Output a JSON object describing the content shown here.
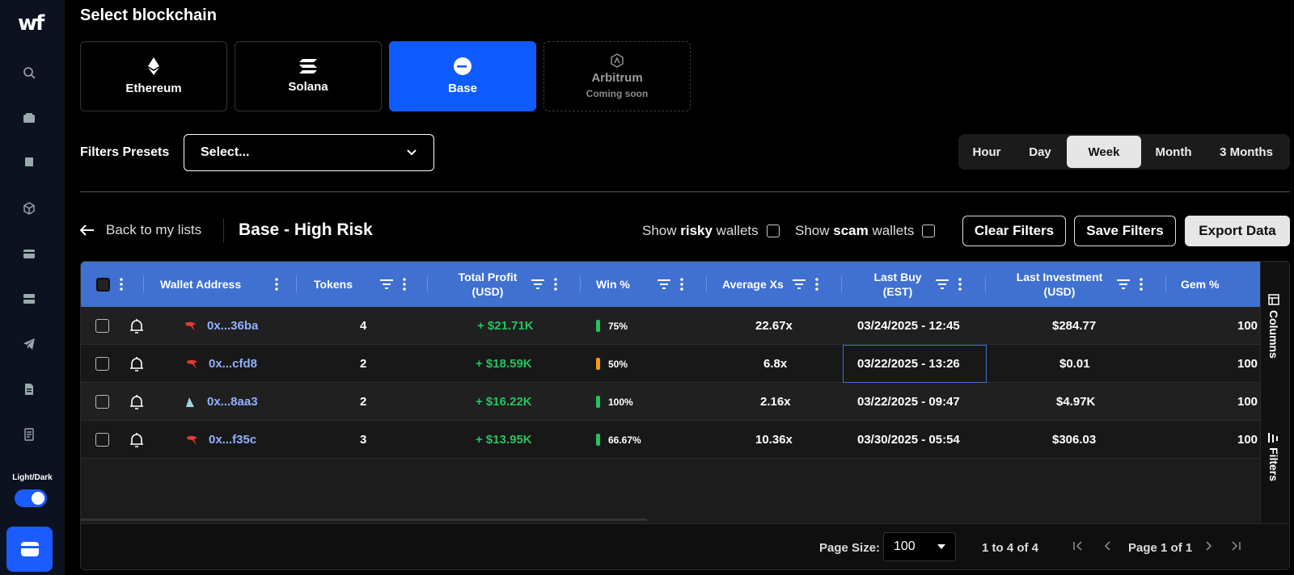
{
  "sidebar": {
    "logo": "wf",
    "theme_label": "Light/Dark",
    "icons": [
      "search-icon",
      "wallet-icon",
      "book-icon",
      "cube-icon",
      "card-icon",
      "server-icon",
      "telegram-icon",
      "document-icon",
      "ledger-icon"
    ]
  },
  "blockchain": {
    "title": "Select blockchain",
    "chains": [
      {
        "name": "Ethereum",
        "icon": "ethereum-icon",
        "state": "normal"
      },
      {
        "name": "Solana",
        "icon": "solana-icon",
        "state": "normal"
      },
      {
        "name": "Base",
        "icon": "base-icon",
        "state": "active"
      },
      {
        "name": "Arbitrum",
        "icon": "arbitrum-icon",
        "state": "disabled",
        "note": "Coming soon"
      }
    ]
  },
  "filters": {
    "presets_label": "Filters Presets",
    "presets_placeholder": "Select..."
  },
  "time_range": {
    "options": [
      "Hour",
      "Day",
      "Week",
      "Month",
      "3 Months"
    ],
    "selected": "Week"
  },
  "list": {
    "back_label": "Back to my lists",
    "title": "Base - High Risk",
    "show_risky_pre": "Show ",
    "show_risky_bold": "risky",
    "show_risky_post": " wallets",
    "show_scam_pre": "Show ",
    "show_scam_bold": "scam",
    "show_scam_post": " wallets",
    "clear_filters": "Clear Filters",
    "save_filters": "Save Filters",
    "export_data": "Export Data"
  },
  "table": {
    "columns": {
      "wallet": "Wallet Address",
      "tokens": "Tokens",
      "profit_1": "Total Profit",
      "profit_2": "(USD)",
      "win": "Win %",
      "avg": "Average Xs",
      "last_buy_1": "Last Buy",
      "last_buy_2": "(EST)",
      "last_inv_1": "Last Investment",
      "last_inv_2": "(USD)",
      "gem": "Gem %"
    },
    "rows": [
      {
        "address": "0x...36ba",
        "avatar": "red-bird",
        "tokens": "4",
        "profit": "+ $21.71K",
        "win": "75%",
        "win_color": "#22c55e",
        "avg": "22.67x",
        "last_buy": "03/24/2025 - 12:45",
        "last_inv": "$284.77",
        "gem": "100"
      },
      {
        "address": "0x...cfd8",
        "avatar": "red-bird",
        "tokens": "2",
        "profit": "+ $18.59K",
        "win": "50%",
        "win_color": "#f59e0b",
        "avg": "6.8x",
        "last_buy": "03/22/2025 - 13:26",
        "last_inv": "$0.01",
        "gem": "100"
      },
      {
        "address": "0x...8aa3",
        "avatar": "shark",
        "tokens": "2",
        "profit": "+ $16.22K",
        "win": "100%",
        "win_color": "#22c55e",
        "avg": "2.16x",
        "last_buy": "03/22/2025 - 09:47",
        "last_inv": "$4.97K",
        "gem": "100"
      },
      {
        "address": "0x...f35c",
        "avatar": "red-bird",
        "tokens": "3",
        "profit": "+ $13.95K",
        "win": "66.67%",
        "win_color": "#22c55e",
        "avg": "10.36x",
        "last_buy": "03/30/2025 - 05:54",
        "last_inv": "$306.03",
        "gem": "100"
      }
    ],
    "side_columns": "Columns",
    "side_filters": "Filters"
  },
  "pagination": {
    "page_size_label": "Page Size:",
    "page_size": "100",
    "range": "1 to 4 of 4",
    "page_info": "Page 1 of 1"
  }
}
